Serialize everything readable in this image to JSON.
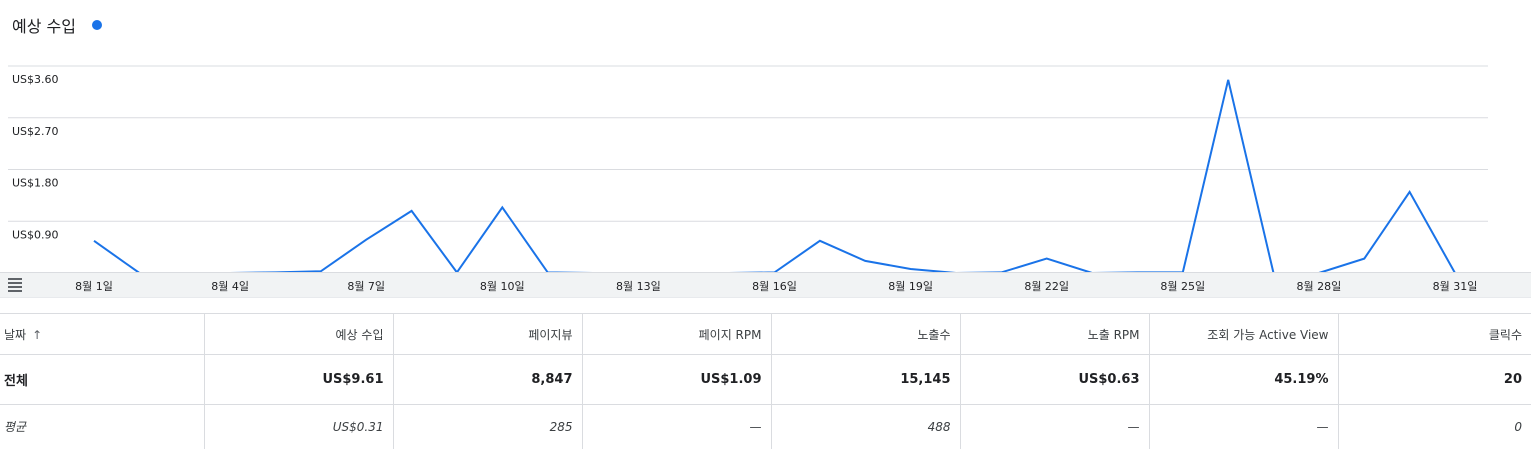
{
  "chart_data": {
    "type": "line",
    "title": "예상 수입",
    "series_color": "#1a73e8",
    "grid": true,
    "ylim": [
      0,
      3.6
    ],
    "y_ticks": [
      0.9,
      1.8,
      2.7,
      3.6
    ],
    "y_tick_labels": [
      "US$0.90",
      "US$1.80",
      "US$2.70",
      "US$3.60"
    ],
    "x_tick_days": [
      1,
      4,
      7,
      10,
      13,
      16,
      19,
      22,
      25,
      28,
      31
    ],
    "x_tick_labels": [
      "8월 1일",
      "8월 4일",
      "8월 7일",
      "8월 10일",
      "8월 13일",
      "8월 16일",
      "8월 19일",
      "8월 22일",
      "8월 25일",
      "8월 28일",
      "8월 31일"
    ],
    "x": [
      1,
      2,
      3,
      4,
      5,
      6,
      7,
      8,
      9,
      10,
      11,
      12,
      13,
      14,
      15,
      16,
      17,
      18,
      19,
      20,
      21,
      22,
      23,
      24,
      25,
      26,
      27,
      28,
      29,
      30,
      31
    ],
    "values": [
      0.56,
      0.0,
      0.0,
      0.0,
      0.01,
      0.03,
      0.58,
      1.08,
      0.01,
      1.14,
      0.01,
      0.0,
      0.0,
      0.0,
      0.0,
      0.01,
      0.56,
      0.21,
      0.07,
      0.0,
      0.01,
      0.25,
      0.0,
      0.01,
      0.01,
      3.36,
      0.0,
      0.0,
      0.25,
      1.41,
      0.0
    ]
  },
  "table": {
    "headers": [
      "날짜",
      "예상 수입",
      "페이지뷰",
      "페이지 RPM",
      "노출수",
      "노출 RPM",
      "조회 가능 Active View",
      "클릭수"
    ],
    "sort_arrow": "↑",
    "total": {
      "label": "전체",
      "values": [
        "US$9.61",
        "8,847",
        "US$1.09",
        "15,145",
        "US$0.63",
        "45.19%",
        "20"
      ]
    },
    "average": {
      "label": "평균",
      "values": [
        "US$0.31",
        "285",
        "—",
        "488",
        "—",
        "—",
        "0"
      ]
    }
  }
}
